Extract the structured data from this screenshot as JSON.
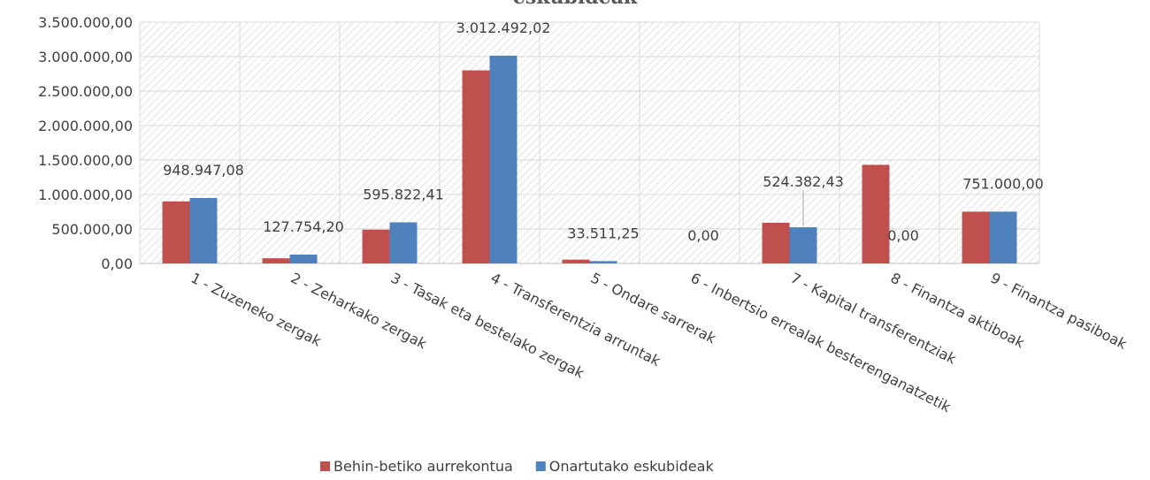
{
  "chart_data": {
    "type": "bar",
    "title": "eskubideak",
    "categories": [
      "1 - Zuzeneko zergak",
      "2 - Zeharkako zergak",
      "3 - Tasak eta bestelako zergak",
      "4 - Transferentzia arruntak",
      "5 - Ondare sarrerak",
      "6 - Inbertsio errealak besterenganatzetik",
      "7 - Kapital transferentziak",
      "8 - Finantza aktiboak",
      "9 - Finantza pasiboak"
    ],
    "series": [
      {
        "name": "Behin-betiko aurrekontua",
        "color": "#c0504d",
        "values": [
          900000,
          75000,
          490000,
          2800000,
          55000,
          0,
          590000,
          1430000,
          751000
        ]
      },
      {
        "name": "Onartutako eskubideak",
        "color": "#4f81bd",
        "values": [
          948947.08,
          127754.2,
          595822.41,
          3012492.02,
          33511.25,
          0,
          524382.43,
          0,
          751000
        ],
        "value_labels": [
          "948.947,08",
          "127.754,20",
          "595.822,41",
          "3.012.492,02",
          "33.511,25",
          "0,00",
          "524.382,43",
          "0,00",
          "751.000,00"
        ]
      }
    ],
    "ylim": [
      0,
      3500000
    ],
    "yticks": [
      {
        "value": 0,
        "label": "0,00"
      },
      {
        "value": 500000,
        "label": "500.000,00"
      },
      {
        "value": 1000000,
        "label": "1.000.000,00"
      },
      {
        "value": 1500000,
        "label": "1.500.000,00"
      },
      {
        "value": 2000000,
        "label": "2.000.000,00"
      },
      {
        "value": 2500000,
        "label": "2.500.000,00"
      },
      {
        "value": 3000000,
        "label": "3.000.000,00"
      },
      {
        "value": 3500000,
        "label": "3.500.000,00"
      }
    ],
    "grid": true,
    "legend": "bottom"
  }
}
